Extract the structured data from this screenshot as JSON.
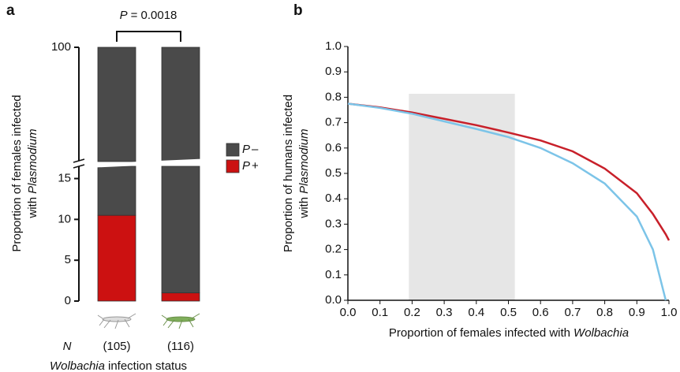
{
  "chart_data": [
    {
      "type": "stacked-bar",
      "panel_label": "a",
      "annotation_symbol": "P",
      "annotation": "= 0.0018",
      "y_label_line1": "Proportion of females infected",
      "y_label_line2_prefix": "with",
      "y_label_line2_italic": "Plasmodium",
      "x_label_italic": "Wolbachia",
      "x_label": "infection status",
      "n_symbol": "N",
      "n_labels": [
        "(105)",
        "(116)"
      ],
      "categories": [
        null,
        null
      ],
      "series": [
        {
          "name_italic": "P",
          "name": "+",
          "color": "#cc1111",
          "values": [
            10.5,
            1.0
          ]
        },
        {
          "name_italic": "P",
          "name": "–",
          "color": "#4a4a4a",
          "values": [
            89.5,
            99.0
          ]
        }
      ],
      "ylim": [
        0,
        100
      ],
      "axis_break": [
        16.5,
        90
      ],
      "yticks": [
        0,
        5,
        10,
        15,
        100
      ]
    },
    {
      "type": "line",
      "panel_label": "b",
      "y_label_line1": "Proportion of humans infected",
      "y_label_line2_prefix": "with",
      "y_label_line2_italic": "Plasmodium",
      "x_label": "Proportion of females infected with",
      "x_label_italic": "Wolbachia",
      "shade": [
        0.19,
        0.52
      ],
      "shade_color": "#e6e6e6",
      "x": [
        0,
        0.1,
        0.2,
        0.3,
        0.4,
        0.5,
        0.6,
        0.7,
        0.8,
        0.9,
        0.95,
        0.99,
        1.0
      ],
      "series": [
        {
          "color": "#c8202a",
          "values": [
            0.775,
            0.76,
            0.74,
            0.715,
            0.69,
            0.661,
            0.63,
            0.587,
            0.519,
            0.422,
            0.34,
            0.26,
            0.236
          ]
        },
        {
          "color": "#7cc4e8",
          "values": [
            0.775,
            0.758,
            0.735,
            0.705,
            0.675,
            0.643,
            0.6,
            0.54,
            0.46,
            0.33,
            0.2,
            0,
            null
          ]
        }
      ],
      "xlim": [
        0,
        1
      ],
      "ylim": [
        0,
        1
      ],
      "xticks": [
        {
          "value": 0,
          "label": "0.0"
        },
        0.1,
        0.2,
        0.3,
        0.4,
        0.5,
        0.6,
        0.7,
        0.8,
        0.9,
        {
          "value": 1,
          "label": "1.0"
        }
      ],
      "yticks": [
        {
          "value": 0,
          "label": "0.0"
        },
        0.1,
        0.2,
        0.3,
        0.4,
        0.5,
        0.6,
        0.7,
        0.8,
        0.9,
        {
          "value": 1,
          "label": "1.0"
        }
      ]
    }
  ]
}
